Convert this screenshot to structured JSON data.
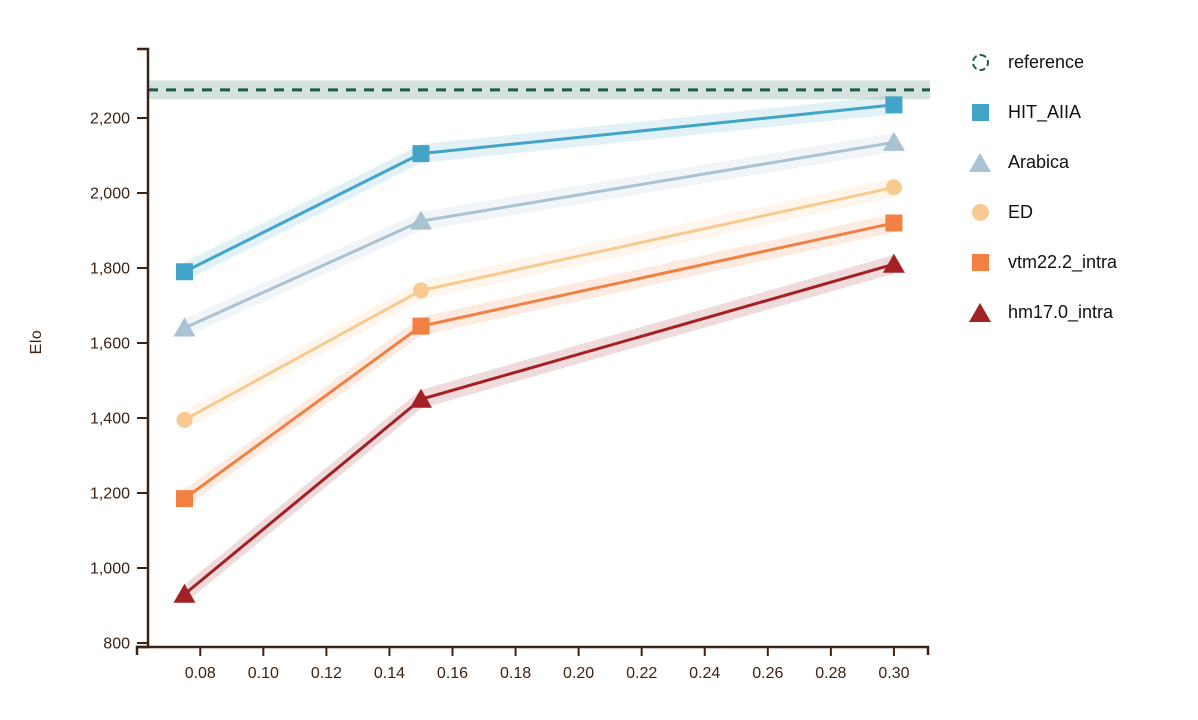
{
  "chart_data": {
    "type": "line",
    "title": "",
    "xlabel": "",
    "ylabel": "Elo",
    "legend_position": "right",
    "grid": false,
    "x": [
      0.075,
      0.15,
      0.3
    ],
    "x_ticks": [
      0.08,
      0.1,
      0.12,
      0.14,
      0.16,
      0.18,
      0.2,
      0.22,
      0.24,
      0.26,
      0.28,
      0.3
    ],
    "x_tick_labels": [
      "0.08",
      "0.10",
      "0.12",
      "0.14",
      "0.16",
      "0.18",
      "0.20",
      "0.22",
      "0.24",
      "0.26",
      "0.28",
      "0.30"
    ],
    "y_ticks": [
      800,
      1000,
      1200,
      1400,
      1600,
      1800,
      2000,
      2200
    ],
    "y_tick_labels": [
      "800",
      "1,000",
      "1,200",
      "1,400",
      "1,600",
      "1,800",
      "2,000",
      "2,200"
    ],
    "xlim": [
      0.06,
      0.311
    ],
    "ylim": [
      790,
      2385
    ],
    "reference": {
      "label": "reference",
      "value": 2275,
      "ci": 25,
      "color": "#1e5a4e",
      "band_color": "#d6e2de"
    },
    "series": [
      {
        "name": "HIT_AIIA",
        "marker": "square",
        "color": "#42a5c8",
        "ci": 25,
        "values": [
          1790,
          2105,
          2235
        ]
      },
      {
        "name": "Arabica",
        "marker": "triangle",
        "color": "#a9c3d3",
        "ci": 25,
        "values": [
          1640,
          1925,
          2135
        ]
      },
      {
        "name": "ED",
        "marker": "circle",
        "color": "#f7ca92",
        "ci": 25,
        "values": [
          1395,
          1740,
          2015
        ]
      },
      {
        "name": "vtm22.2_intra",
        "marker": "square",
        "color": "#f28043",
        "ci": 25,
        "values": [
          1185,
          1645,
          1920
        ]
      },
      {
        "name": "hm17.0_intra",
        "marker": "triangle",
        "color": "#a32024",
        "ci": 25,
        "values": [
          930,
          1450,
          1810
        ]
      }
    ],
    "axis_color": "#3b2315",
    "legend_text_color": "#111111",
    "background": "#ffffff"
  }
}
